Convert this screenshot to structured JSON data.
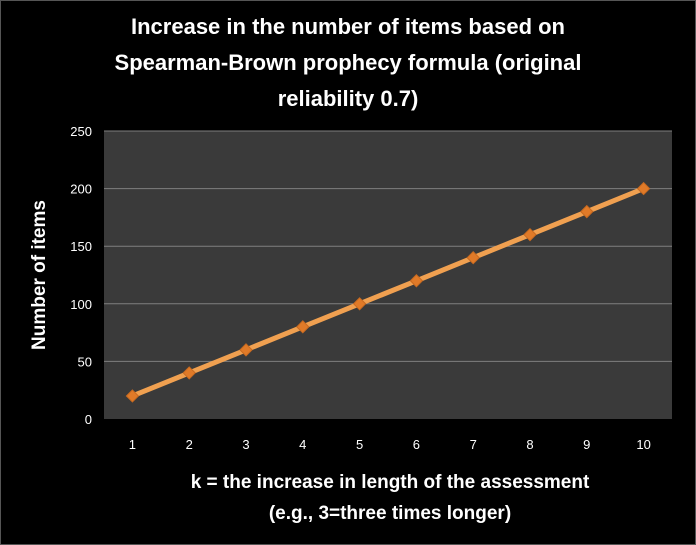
{
  "chart_data": {
    "type": "line",
    "title": [
      "Increase in the number of items based on",
      "Spearman-Brown prophecy formula (original",
      "reliability 0.7)"
    ],
    "xlabel": [
      "k = the increase in length of the assessment",
      "(e.g., 3=three times longer)"
    ],
    "ylabel": "Number of items",
    "categories": [
      "1",
      "2",
      "3",
      "4",
      "5",
      "6",
      "7",
      "8",
      "9",
      "10"
    ],
    "series": [
      {
        "values": [
          20,
          40,
          60,
          80,
          100,
          120,
          140,
          160,
          180,
          200
        ]
      }
    ],
    "yticks": [
      "0",
      "50",
      "100",
      "150",
      "200",
      "250"
    ],
    "ylim": [
      0,
      250
    ],
    "grid": true,
    "legend": "none",
    "colors": {
      "background": "#000000",
      "plot_area": "#3a3a3a",
      "gridline": "#7f7f7f",
      "line": "#f0a050",
      "marker": "#e07a28",
      "text": "#ffffff"
    }
  }
}
